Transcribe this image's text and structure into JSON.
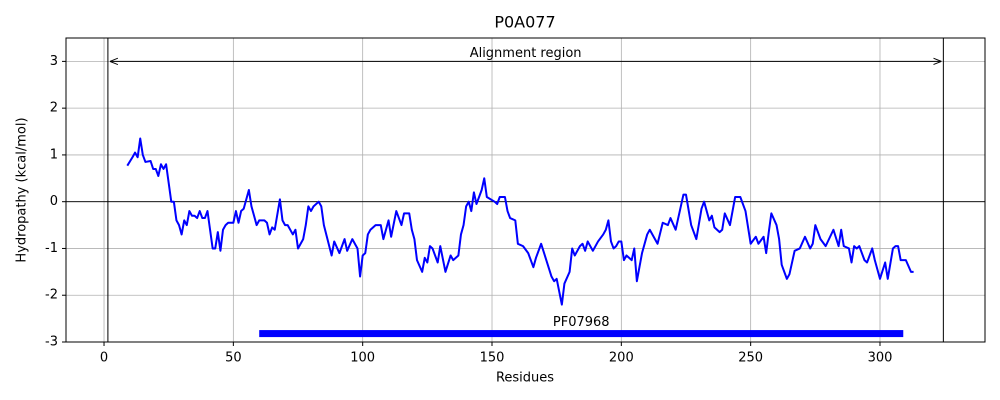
{
  "chart_data": {
    "type": "line",
    "title": "P0A077",
    "x_label": "Residues",
    "y_label": "Hydropathy (kcal/mol)",
    "color": "#0000ff",
    "x": [
      9,
      11,
      12,
      13,
      14,
      15,
      16,
      18,
      19,
      20,
      21,
      22,
      23,
      24,
      25,
      26,
      27,
      28,
      29,
      30,
      31,
      32,
      33,
      34,
      35,
      36,
      37,
      38,
      39,
      40,
      41,
      42,
      43,
      44,
      45,
      46,
      47,
      48,
      50,
      51,
      52,
      53,
      54,
      56,
      57,
      59,
      60,
      62,
      63,
      64,
      65,
      66,
      68,
      69,
      70,
      71,
      73,
      74,
      75,
      77,
      78,
      79,
      80,
      81,
      83,
      84,
      85,
      88,
      89,
      91,
      93,
      94,
      96,
      98,
      99,
      100,
      101,
      102,
      103,
      105,
      107,
      108,
      110,
      111,
      113,
      115,
      116,
      118,
      119,
      120,
      121,
      123,
      124,
      125,
      126,
      127,
      129,
      130,
      132,
      134,
      135,
      137,
      138,
      139,
      140,
      141,
      142,
      143,
      144,
      146,
      147,
      148,
      151,
      152,
      153,
      155,
      156,
      157,
      159,
      160,
      162,
      164,
      166,
      167,
      169,
      171,
      173,
      174,
      175,
      177,
      178,
      180,
      181,
      182,
      184,
      185,
      186,
      187,
      189,
      191,
      193,
      194,
      195,
      196,
      197,
      198,
      199,
      200,
      201,
      202,
      204,
      205,
      206,
      208,
      210,
      211,
      213,
      214,
      216,
      218,
      219,
      221,
      224,
      225,
      227,
      229,
      231,
      232,
      234,
      235,
      236,
      238,
      239,
      240,
      242,
      243,
      244,
      246,
      248,
      250,
      252,
      253,
      255,
      256,
      257,
      258,
      260,
      261,
      262,
      264,
      265,
      267,
      269,
      271,
      273,
      274,
      275,
      277,
      279,
      282,
      284,
      285,
      286,
      288,
      289,
      290,
      291,
      292,
      294,
      295,
      297,
      298,
      300,
      302,
      303,
      305,
      306,
      307,
      308,
      310,
      312,
      313
    ],
    "values": [
      0.77,
      0.95,
      1.05,
      0.95,
      1.35,
      1.0,
      0.85,
      0.87,
      0.7,
      0.7,
      0.55,
      0.8,
      0.7,
      0.8,
      0.4,
      0,
      0,
      -0.4,
      -0.5,
      -0.7,
      -0.4,
      -0.5,
      -0.2,
      -0.3,
      -0.3,
      -0.35,
      -0.2,
      -0.35,
      -0.35,
      -0.2,
      -0.6,
      -1.0,
      -1.0,
      -0.65,
      -1.05,
      -0.6,
      -0.5,
      -0.45,
      -0.45,
      -0.2,
      -0.45,
      -0.2,
      -0.15,
      0.25,
      -0.1,
      -0.5,
      -0.4,
      -0.4,
      -0.45,
      -0.7,
      -0.55,
      -0.6,
      0.05,
      -0.4,
      -0.5,
      -0.5,
      -0.7,
      -0.6,
      -1.0,
      -0.8,
      -0.5,
      -0.1,
      -0.2,
      -0.1,
      0,
      -0.1,
      -0.5,
      -1.15,
      -0.85,
      -1.1,
      -0.8,
      -1.05,
      -0.8,
      -1.0,
      -1.6,
      -1.15,
      -1.1,
      -0.7,
      -0.6,
      -0.5,
      -0.5,
      -0.8,
      -0.4,
      -0.75,
      -0.2,
      -0.5,
      -0.25,
      -0.25,
      -0.6,
      -0.8,
      -1.25,
      -1.5,
      -1.2,
      -1.3,
      -0.95,
      -1.0,
      -1.3,
      -0.95,
      -1.5,
      -1.15,
      -1.25,
      -1.15,
      -0.7,
      -0.5,
      -0.1,
      0,
      -0.2,
      0.2,
      -0.05,
      0.25,
      0.5,
      0.1,
      0,
      -0.05,
      0.1,
      0.1,
      -0.2,
      -0.35,
      -0.4,
      -0.9,
      -0.95,
      -1.1,
      -1.4,
      -1.2,
      -0.9,
      -1.25,
      -1.6,
      -1.7,
      -1.65,
      -2.2,
      -1.75,
      -1.5,
      -1.0,
      -1.15,
      -0.95,
      -0.9,
      -1.05,
      -0.85,
      -1.05,
      -0.85,
      -0.7,
      -0.6,
      -0.4,
      -0.85,
      -1.0,
      -0.95,
      -0.85,
      -0.85,
      -1.25,
      -1.15,
      -1.25,
      -1.0,
      -1.7,
      -1.1,
      -0.7,
      -0.6,
      -0.8,
      -0.9,
      -0.45,
      -0.5,
      -0.35,
      -0.6,
      0.15,
      0.15,
      -0.5,
      -0.8,
      -0.15,
      0,
      -0.4,
      -0.3,
      -0.55,
      -0.65,
      -0.6,
      -0.25,
      -0.5,
      -0.2,
      0.1,
      0.1,
      -0.2,
      -0.9,
      -0.75,
      -0.9,
      -0.75,
      -1.1,
      -0.65,
      -0.25,
      -0.5,
      -0.8,
      -1.35,
      -1.65,
      -1.55,
      -1.05,
      -1.0,
      -0.75,
      -1.0,
      -0.9,
      -0.5,
      -0.8,
      -0.95,
      -0.6,
      -0.95,
      -0.6,
      -0.95,
      -1.0,
      -1.3,
      -0.95,
      -1.0,
      -0.95,
      -1.25,
      -1.3,
      -1.0,
      -1.25,
      -1.65,
      -1.3,
      -1.65,
      -1.0,
      -0.95,
      -0.95,
      -1.25,
      -1.25,
      -1.5,
      -1.5
    ],
    "xlim": [
      -14.7,
      340.6
    ],
    "ylim": [
      -3,
      3.5
    ],
    "xticks": [
      0,
      50,
      100,
      150,
      200,
      250,
      300
    ],
    "yticks": [
      -3,
      -2,
      -1,
      0,
      1,
      2,
      3
    ],
    "grid": true,
    "hline": 0,
    "vlines": [
      1.5,
      324.5
    ],
    "annotation": {
      "text": "Alignment region",
      "y": 3
    },
    "domains": [
      {
        "label": "PF07968",
        "start": 60,
        "end": 309,
        "y": -2.82,
        "color": "#0000ff"
      }
    ]
  }
}
